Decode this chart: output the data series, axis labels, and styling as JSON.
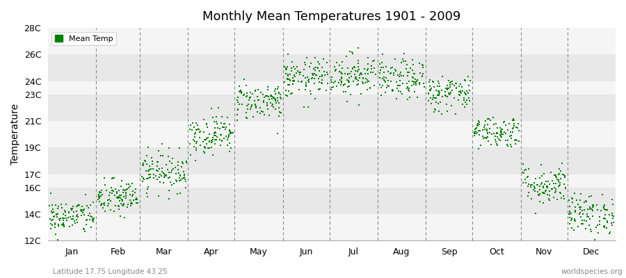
{
  "title": "Monthly Mean Temperatures 1901 - 2009",
  "ylabel": "Temperature",
  "subtitle_left": "Latitude 17.75 Longitude 43.25",
  "subtitle_right": "worldspecies.org",
  "legend_label": "Mean Temp",
  "dot_color": "#008000",
  "bg_color": "#ffffff",
  "plot_bg_color": "#ebebeb",
  "band_color_light": "#f5f5f5",
  "band_color_dark": "#e8e8e8",
  "grid_color": "#cccccc",
  "vline_color": "#888888",
  "ylim": [
    12,
    28
  ],
  "yticks": [
    12,
    14,
    16,
    17,
    19,
    21,
    23,
    24,
    26,
    28
  ],
  "ytick_labels": [
    "12C",
    "14C",
    "16C",
    "17C",
    "19C",
    "21C",
    "23C",
    "24C",
    "26C",
    "28C"
  ],
  "monthly_means": [
    13.8,
    15.2,
    17.2,
    20.0,
    22.5,
    24.2,
    24.5,
    24.1,
    23.1,
    20.2,
    16.2,
    14.0
  ],
  "monthly_stds": [
    0.65,
    0.7,
    0.75,
    0.75,
    0.7,
    0.75,
    0.8,
    0.75,
    0.7,
    0.6,
    0.75,
    0.75
  ],
  "n_years": 109,
  "seed": 42,
  "dot_size": 2,
  "month_names": [
    "Jan",
    "Feb",
    "Mar",
    "Apr",
    "May",
    "Jun",
    "Jul",
    "Aug",
    "Sep",
    "Oct",
    "Nov",
    "Dec"
  ]
}
